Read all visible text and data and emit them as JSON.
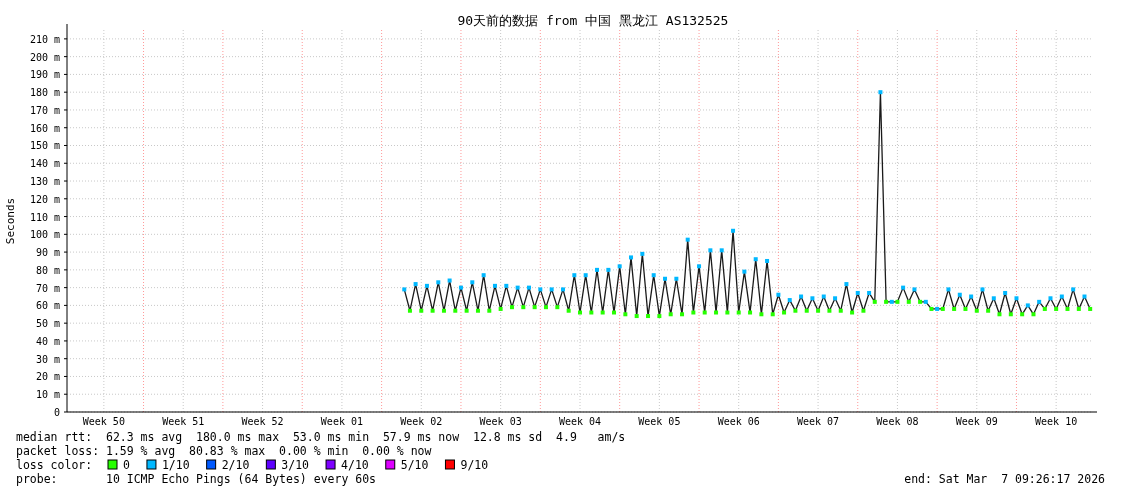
{
  "chart_data": {
    "type": "line",
    "title": "90天前的数据 from 中国 黑龙江 AS132525",
    "ylabel": "Seconds",
    "categories": [
      null,
      null,
      null,
      null,
      null,
      null,
      "Week 50",
      null,
      null,
      null,
      null,
      null,
      null,
      null,
      null,
      null,
      null,
      null,
      null,
      null,
      "Week 51",
      null,
      null,
      null,
      null,
      null,
      null,
      null,
      null,
      null,
      null,
      null,
      null,
      null,
      "Week 52",
      null,
      null,
      null,
      null,
      null,
      null,
      null,
      null,
      null,
      null,
      null,
      null,
      null,
      "Week 01",
      null,
      null,
      null,
      null,
      null,
      null,
      null,
      null,
      null,
      null,
      null,
      null,
      null,
      "Week 02",
      null,
      null,
      null,
      null,
      null,
      null,
      null,
      null,
      null,
      null,
      null,
      null,
      null,
      "Week 03",
      null,
      null,
      null,
      null,
      null,
      null,
      null,
      null,
      null,
      null,
      null,
      null,
      null,
      "Week 04",
      null,
      null,
      null,
      null,
      null,
      null,
      null,
      null,
      null,
      null,
      null,
      null,
      null,
      "Week 05",
      null,
      null,
      null,
      null,
      null,
      null,
      null,
      null,
      null,
      null,
      null,
      null,
      null,
      "Week 06",
      null,
      null,
      null,
      null,
      null,
      null,
      null,
      null,
      null,
      null,
      null,
      null,
      null,
      "Week 07",
      null,
      null,
      null,
      null,
      null,
      null,
      null,
      null,
      null,
      null,
      null,
      null,
      null,
      "Week 08",
      null,
      null,
      null,
      null,
      null,
      null,
      null,
      null,
      null,
      null,
      null,
      null,
      null,
      "Week 09",
      null,
      null,
      null,
      null,
      null,
      null,
      null,
      null,
      null,
      null,
      null,
      null,
      null,
      "Week 10",
      null,
      null,
      null,
      null,
      null,
      null
    ],
    "ylim": [
      0,
      215
    ],
    "yticks": [
      0,
      {
        "value": 10,
        "label": "10 m"
      },
      {
        "value": 20,
        "label": "20 m"
      },
      {
        "value": 30,
        "label": "30 m"
      },
      {
        "value": 40,
        "label": "40 m"
      },
      {
        "value": 50,
        "label": "50 m"
      },
      {
        "value": 60,
        "label": "60 m"
      },
      {
        "value": 70,
        "label": "70 m"
      },
      {
        "value": 80,
        "label": "80 m"
      },
      {
        "value": 90,
        "label": "90 m"
      },
      {
        "value": 100,
        "label": "100 m"
      },
      {
        "value": 110,
        "label": "110 m"
      },
      {
        "value": 120,
        "label": "120 m"
      },
      {
        "value": 130,
        "label": "130 m"
      },
      {
        "value": 140,
        "label": "140 m"
      },
      {
        "value": 150,
        "label": "150 m"
      },
      {
        "value": 160,
        "label": "160 m"
      },
      {
        "value": 170,
        "label": "170 m"
      },
      {
        "value": 180,
        "label": "180 m"
      },
      {
        "value": 190,
        "label": "190 m"
      },
      {
        "value": 200,
        "label": "200 m"
      },
      {
        "value": 210,
        "label": "210 m"
      }
    ],
    "grid": true,
    "legend": "bottom",
    "series": [
      {
        "color": "#1a1a1a",
        "values": [
          null,
          null,
          null,
          null,
          null,
          null,
          null,
          null,
          null,
          null,
          null,
          null,
          null,
          null,
          null,
          null,
          null,
          null,
          null,
          null,
          null,
          null,
          null,
          null,
          null,
          null,
          null,
          null,
          null,
          null,
          null,
          null,
          null,
          null,
          null,
          null,
          null,
          null,
          null,
          null,
          null,
          null,
          null,
          null,
          null,
          null,
          null,
          null,
          null,
          null,
          null,
          null,
          null,
          null,
          null,
          null,
          null,
          null,
          null,
          69,
          57,
          72,
          57,
          71,
          57,
          73,
          57,
          74,
          57,
          70,
          57,
          73,
          57,
          77,
          57,
          71,
          58,
          71,
          59,
          70,
          59,
          70,
          59,
          69,
          59,
          69,
          59,
          69,
          57,
          77,
          56,
          77,
          56,
          80,
          56,
          80,
          56,
          82,
          55,
          87,
          54,
          89,
          54,
          77,
          54,
          75,
          55,
          75,
          55,
          97,
          56,
          82,
          56,
          91,
          56,
          91,
          56,
          102,
          56,
          79,
          56,
          86,
          55,
          85,
          55,
          66,
          56,
          63,
          57,
          65,
          57,
          64,
          57,
          65,
          57,
          64,
          57,
          72,
          56,
          67,
          57,
          67,
          62,
          180,
          62,
          62,
          62,
          70,
          62,
          69,
          62,
          62,
          58,
          58,
          58,
          69,
          58,
          66,
          58,
          65,
          57,
          69,
          57,
          64,
          55,
          67,
          55,
          64,
          55,
          60,
          55,
          62,
          58,
          64,
          58,
          65,
          58,
          69,
          58,
          65,
          58
        ]
      },
      {
        "name": "0",
        "type": "scatter",
        "color": "#26ff00",
        "values": [
          null,
          null,
          null,
          null,
          null,
          null,
          null,
          null,
          null,
          null,
          null,
          null,
          null,
          null,
          null,
          null,
          null,
          null,
          null,
          null,
          null,
          null,
          null,
          null,
          null,
          null,
          null,
          null,
          null,
          null,
          null,
          null,
          null,
          null,
          null,
          null,
          null,
          null,
          null,
          null,
          null,
          null,
          null,
          null,
          null,
          null,
          null,
          null,
          null,
          null,
          null,
          null,
          null,
          null,
          null,
          null,
          null,
          null,
          null,
          null,
          57,
          null,
          57,
          null,
          57,
          null,
          57,
          null,
          57,
          null,
          57,
          null,
          57,
          null,
          57,
          null,
          58,
          null,
          59,
          null,
          59,
          null,
          59,
          null,
          59,
          null,
          59,
          null,
          57,
          null,
          56,
          null,
          56,
          null,
          56,
          null,
          56,
          null,
          55,
          null,
          54,
          null,
          54,
          null,
          54,
          null,
          55,
          null,
          55,
          null,
          56,
          null,
          56,
          null,
          56,
          null,
          56,
          null,
          56,
          null,
          56,
          null,
          55,
          null,
          55,
          null,
          56,
          null,
          57,
          null,
          57,
          null,
          57,
          null,
          57,
          null,
          57,
          null,
          56,
          null,
          57,
          null,
          62,
          null,
          62,
          null,
          62,
          null,
          62,
          null,
          62,
          null,
          58,
          null,
          58,
          null,
          58,
          null,
          58,
          null,
          57,
          null,
          57,
          null,
          55,
          null,
          55,
          null,
          55,
          null,
          55,
          null,
          58,
          null,
          58,
          null,
          58,
          null,
          58,
          null,
          58
        ]
      },
      {
        "name": "1/10",
        "type": "scatter",
        "color": "#00b8ff",
        "values": [
          null,
          null,
          null,
          null,
          null,
          null,
          null,
          null,
          null,
          null,
          null,
          null,
          null,
          null,
          null,
          null,
          null,
          null,
          null,
          null,
          null,
          null,
          null,
          null,
          null,
          null,
          null,
          null,
          null,
          null,
          null,
          null,
          null,
          null,
          null,
          null,
          null,
          null,
          null,
          null,
          null,
          null,
          null,
          null,
          null,
          null,
          null,
          null,
          null,
          null,
          null,
          null,
          null,
          null,
          null,
          null,
          null,
          null,
          null,
          69,
          null,
          72,
          null,
          71,
          null,
          73,
          null,
          74,
          null,
          70,
          null,
          73,
          null,
          77,
          null,
          71,
          null,
          71,
          null,
          70,
          null,
          70,
          null,
          69,
          null,
          69,
          null,
          69,
          null,
          77,
          null,
          77,
          null,
          80,
          null,
          80,
          null,
          82,
          null,
          87,
          null,
          89,
          null,
          77,
          null,
          75,
          null,
          75,
          null,
          97,
          null,
          82,
          null,
          91,
          null,
          91,
          null,
          102,
          null,
          79,
          null,
          86,
          null,
          85,
          null,
          66,
          null,
          63,
          null,
          65,
          null,
          64,
          null,
          65,
          null,
          64,
          null,
          72,
          null,
          67,
          null,
          67,
          null,
          180,
          null,
          62,
          null,
          70,
          null,
          69,
          null,
          62,
          null,
          58,
          null,
          69,
          null,
          66,
          null,
          65,
          null,
          69,
          null,
          64,
          null,
          67,
          null,
          64,
          null,
          60,
          null,
          62,
          null,
          64,
          null,
          65,
          null,
          69,
          null,
          65,
          null
        ]
      },
      {
        "name": "2/10",
        "color": "#0059ff",
        "values": [
          null,
          null,
          null,
          null,
          null,
          null,
          null,
          null,
          null,
          null,
          null,
          null,
          null,
          null,
          null,
          null,
          null,
          null,
          null,
          null,
          null,
          null,
          null,
          null,
          null,
          null,
          null,
          null,
          null,
          null,
          null,
          null,
          null,
          null,
          null,
          null,
          null,
          null,
          null,
          null,
          null,
          null,
          null,
          null,
          null,
          null,
          null,
          null,
          null,
          null,
          null,
          null,
          null,
          null,
          null,
          null,
          null,
          null,
          null,
          null,
          null,
          null,
          null,
          null,
          null,
          null,
          null,
          null,
          null,
          null,
          null,
          null,
          null,
          null,
          null,
          null,
          null,
          null,
          null,
          null,
          null,
          null,
          null,
          null,
          null,
          null,
          null,
          null,
          null,
          null,
          null,
          null,
          null,
          null,
          null,
          null,
          null,
          null,
          null,
          null,
          null,
          null,
          null,
          null,
          null,
          null,
          null,
          null,
          null,
          null,
          null,
          null,
          null,
          null,
          null,
          null,
          null,
          null,
          null,
          null,
          null,
          null,
          null,
          null,
          null,
          null,
          null,
          null,
          null,
          null,
          null,
          null,
          null,
          null,
          null,
          null,
          null,
          null,
          null,
          null,
          null,
          null,
          null,
          null,
          null,
          null,
          null,
          null,
          null,
          null,
          null,
          null,
          null,
          null,
          null,
          null,
          null,
          null,
          null,
          null,
          null,
          null,
          null,
          null,
          null,
          null,
          null,
          null,
          null,
          null,
          null,
          null,
          null,
          null,
          null,
          null,
          null,
          null,
          null,
          null,
          null
        ]
      },
      {
        "name": "3/10",
        "color": "#5e00ff",
        "values": [
          null,
          null,
          null,
          null,
          null,
          null,
          null,
          null,
          null,
          null,
          null,
          null,
          null,
          null,
          null,
          null,
          null,
          null,
          null,
          null,
          null,
          null,
          null,
          null,
          null,
          null,
          null,
          null,
          null,
          null,
          null,
          null,
          null,
          null,
          null,
          null,
          null,
          null,
          null,
          null,
          null,
          null,
          null,
          null,
          null,
          null,
          null,
          null,
          null,
          null,
          null,
          null,
          null,
          null,
          null,
          null,
          null,
          null,
          null,
          null,
          null,
          null,
          null,
          null,
          null,
          null,
          null,
          null,
          null,
          null,
          null,
          null,
          null,
          null,
          null,
          null,
          null,
          null,
          null,
          null,
          null,
          null,
          null,
          null,
          null,
          null,
          null,
          null,
          null,
          null,
          null,
          null,
          null,
          null,
          null,
          null,
          null,
          null,
          null,
          null,
          null,
          null,
          null,
          null,
          null,
          null,
          null,
          null,
          null,
          null,
          null,
          null,
          null,
          null,
          null,
          null,
          null,
          null,
          null,
          null,
          null,
          null,
          null,
          null,
          null,
          null,
          null,
          null,
          null,
          null,
          null,
          null,
          null,
          null,
          null,
          null,
          null,
          null,
          null,
          null,
          null,
          null,
          null,
          null,
          null,
          null,
          null,
          null,
          null,
          null,
          null,
          null,
          null,
          null,
          null,
          null,
          null,
          null,
          null,
          null,
          null,
          null,
          null,
          null,
          null,
          null,
          null,
          null,
          null,
          null,
          null,
          null,
          null,
          null,
          null,
          null,
          null,
          null,
          null,
          null,
          null
        ]
      },
      {
        "name": "4/10",
        "color": "#7e00ff",
        "values": [
          null,
          null,
          null,
          null,
          null,
          null,
          null,
          null,
          null,
          null,
          null,
          null,
          null,
          null,
          null,
          null,
          null,
          null,
          null,
          null,
          null,
          null,
          null,
          null,
          null,
          null,
          null,
          null,
          null,
          null,
          null,
          null,
          null,
          null,
          null,
          null,
          null,
          null,
          null,
          null,
          null,
          null,
          null,
          null,
          null,
          null,
          null,
          null,
          null,
          null,
          null,
          null,
          null,
          null,
          null,
          null,
          null,
          null,
          null,
          null,
          null,
          null,
          null,
          null,
          null,
          null,
          null,
          null,
          null,
          null,
          null,
          null,
          null,
          null,
          null,
          null,
          null,
          null,
          null,
          null,
          null,
          null,
          null,
          null,
          null,
          null,
          null,
          null,
          null,
          null,
          null,
          null,
          null,
          null,
          null,
          null,
          null,
          null,
          null,
          null,
          null,
          null,
          null,
          null,
          null,
          null,
          null,
          null,
          null,
          null,
          null,
          null,
          null,
          null,
          null,
          null,
          null,
          null,
          null,
          null,
          null,
          null,
          null,
          null,
          null,
          null,
          null,
          null,
          null,
          null,
          null,
          null,
          null,
          null,
          null,
          null,
          null,
          null,
          null,
          null,
          null,
          null,
          null,
          null,
          null,
          null,
          null,
          null,
          null,
          null,
          null,
          null,
          null,
          null,
          null,
          null,
          null,
          null,
          null,
          null,
          null,
          null,
          null,
          null,
          null,
          null,
          null,
          null,
          null,
          null,
          null,
          null,
          null,
          null,
          null,
          null,
          null,
          null,
          null,
          null,
          null
        ]
      },
      {
        "name": "5/10",
        "color": "#dd00ff",
        "values": [
          null,
          null,
          null,
          null,
          null,
          null,
          null,
          null,
          null,
          null,
          null,
          null,
          null,
          null,
          null,
          null,
          null,
          null,
          null,
          null,
          null,
          null,
          null,
          null,
          null,
          null,
          null,
          null,
          null,
          null,
          null,
          null,
          null,
          null,
          null,
          null,
          null,
          null,
          null,
          null,
          null,
          null,
          null,
          null,
          null,
          null,
          null,
          null,
          null,
          null,
          null,
          null,
          null,
          null,
          null,
          null,
          null,
          null,
          null,
          null,
          null,
          null,
          null,
          null,
          null,
          null,
          null,
          null,
          null,
          null,
          null,
          null,
          null,
          null,
          null,
          null,
          null,
          null,
          null,
          null,
          null,
          null,
          null,
          null,
          null,
          null,
          null,
          null,
          null,
          null,
          null,
          null,
          null,
          null,
          null,
          null,
          null,
          null,
          null,
          null,
          null,
          null,
          null,
          null,
          null,
          null,
          null,
          null,
          null,
          null,
          null,
          null,
          null,
          null,
          null,
          null,
          null,
          null,
          null,
          null,
          null,
          null,
          null,
          null,
          null,
          null,
          null,
          null,
          null,
          null,
          null,
          null,
          null,
          null,
          null,
          null,
          null,
          null,
          null,
          null,
          null,
          null,
          null,
          null,
          null,
          null,
          null,
          null,
          null,
          null,
          null,
          null,
          null,
          null,
          null,
          null,
          null,
          null,
          null,
          null,
          null,
          null,
          null,
          null,
          null,
          null,
          null,
          null,
          null,
          null,
          null,
          null,
          null,
          null,
          null,
          null,
          null,
          null,
          null,
          null,
          null
        ]
      },
      {
        "name": "9/10",
        "color": "#ff0000",
        "values": [
          null,
          null,
          null,
          null,
          null,
          null,
          null,
          null,
          null,
          null,
          null,
          null,
          null,
          null,
          null,
          null,
          null,
          null,
          null,
          null,
          null,
          null,
          null,
          null,
          null,
          null,
          null,
          null,
          null,
          null,
          null,
          null,
          null,
          null,
          null,
          null,
          null,
          null,
          null,
          null,
          null,
          null,
          null,
          null,
          null,
          null,
          null,
          null,
          null,
          null,
          null,
          null,
          null,
          null,
          null,
          null,
          null,
          null,
          null,
          null,
          null,
          null,
          null,
          null,
          null,
          null,
          null,
          null,
          null,
          null,
          null,
          null,
          null,
          null,
          null,
          null,
          null,
          null,
          null,
          null,
          null,
          null,
          null,
          null,
          null,
          null,
          null,
          null,
          null,
          null,
          null,
          null,
          null,
          null,
          null,
          null,
          null,
          null,
          null,
          null,
          null,
          null,
          null,
          null,
          null,
          null,
          null,
          null,
          null,
          null,
          null,
          null,
          null,
          null,
          null,
          null,
          null,
          null,
          null,
          null,
          null,
          null,
          null,
          null,
          null,
          null,
          null,
          null,
          null,
          null,
          null,
          null,
          null,
          null,
          null,
          null,
          null,
          null,
          null,
          null,
          null,
          null,
          null,
          null,
          null,
          null,
          null,
          null,
          null,
          null,
          null,
          null,
          null,
          null,
          null,
          null,
          null,
          null,
          null,
          null,
          null,
          null,
          null,
          null,
          null,
          null,
          null,
          null,
          null,
          null,
          null,
          null,
          null,
          null,
          null,
          null,
          null,
          null,
          null,
          null,
          null
        ]
      }
    ],
    "annotations": [
      "median rtt:  62.3 ms avg  180.0 ms max  53.0 ms min  57.9 ms now  12.8 ms sd  4.9   am/s",
      "packet loss: 1.59 % avg  80.83 % max  0.00 % min  0.00 % now",
      "loss color:",
      "probe:       10 ICMP Echo Pings (64 Bytes) every 60s",
      "end: Sat Mar  7 09:26:17 2026"
    ]
  }
}
